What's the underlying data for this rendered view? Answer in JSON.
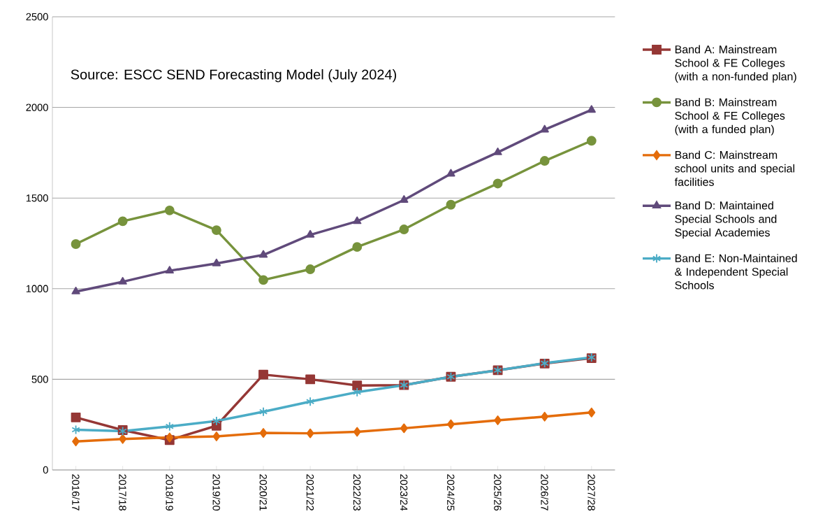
{
  "chart_data": {
    "type": "line",
    "categories": [
      "2016/17",
      "2017/18",
      "2018/19",
      "2019/20",
      "2020/21",
      "2021/22",
      "2022/23",
      "2023/24",
      "2024/25",
      "2025/26",
      "2026/27",
      "2027/28"
    ],
    "series": [
      {
        "name": "Band A: Mainstream School & FE Colleges (with a non-funded plan)",
        "color": "#953735",
        "marker": "square",
        "values": [
          290,
          220,
          165,
          244,
          526,
          500,
          466,
          468,
          514,
          550,
          587,
          617
        ]
      },
      {
        "name": "Band B: Mainstream School & FE Colleges (with a funded plan)",
        "color": "#77933c",
        "marker": "circle",
        "values": [
          1246,
          1372,
          1432,
          1323,
          1048,
          1107,
          1230,
          1327,
          1463,
          1580,
          1705,
          1816
        ]
      },
      {
        "name": "Band C: Mainstream school units and special facilities",
        "color": "#e46c0a",
        "marker": "diamond",
        "values": [
          157,
          171,
          179,
          185,
          204,
          202,
          210,
          230,
          252,
          274,
          294,
          317
        ]
      },
      {
        "name": "Band D: Maintained Special Schools and Special Academies",
        "color": "#604a7b",
        "marker": "triangle",
        "values": [
          984,
          1038,
          1099,
          1139,
          1186,
          1297,
          1372,
          1489,
          1634,
          1752,
          1877,
          1986
        ]
      },
      {
        "name": "Band E: Non-Maintained & Independent Special Schools",
        "color": "#4bacc6",
        "marker": "cross",
        "values": [
          222,
          214,
          240,
          270,
          321,
          377,
          429,
          468,
          514,
          550,
          589,
          621
        ]
      }
    ],
    "ylim": [
      0,
      2500
    ],
    "yticks": [
      0,
      500,
      1000,
      1500,
      2000,
      2500
    ],
    "grid": "y",
    "legend": "right",
    "line_style": "solid",
    "annotations": [
      "Source: ESCC SEND Forecasting Model (July 2024)"
    ]
  }
}
